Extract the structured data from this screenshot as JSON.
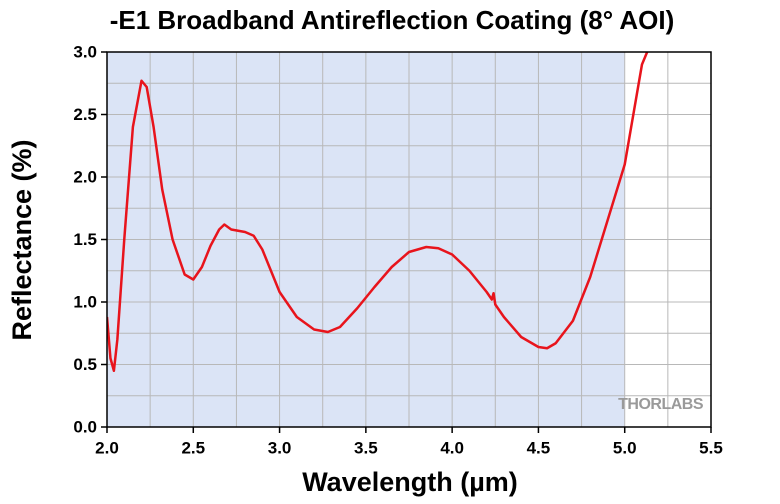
{
  "chart_data": {
    "type": "line",
    "title": "-E1 Broadband Antireflection Coating (8° AOI)",
    "xlabel": "Wavelength (µm)",
    "ylabel": "Reflectance (%)",
    "watermark": "THORLABS",
    "x": [
      2.0,
      2.02,
      2.04,
      2.06,
      2.1,
      2.15,
      2.2,
      2.23,
      2.27,
      2.32,
      2.38,
      2.45,
      2.5,
      2.55,
      2.6,
      2.65,
      2.68,
      2.72,
      2.8,
      2.85,
      2.9,
      2.95,
      3.0,
      3.1,
      3.2,
      3.28,
      3.35,
      3.45,
      3.55,
      3.65,
      3.75,
      3.85,
      3.92,
      4.0,
      4.1,
      4.2,
      4.23,
      4.24,
      4.25,
      4.3,
      4.4,
      4.5,
      4.55,
      4.6,
      4.7,
      4.8,
      4.9,
      5.0,
      5.1,
      5.13
    ],
    "series": [
      {
        "name": "Reflectance",
        "color": "#e8141c",
        "values": [
          0.88,
          0.55,
          0.45,
          0.7,
          1.5,
          2.4,
          2.77,
          2.72,
          2.4,
          1.9,
          1.5,
          1.22,
          1.18,
          1.28,
          1.45,
          1.58,
          1.62,
          1.58,
          1.56,
          1.53,
          1.42,
          1.25,
          1.08,
          0.88,
          0.78,
          0.76,
          0.8,
          0.95,
          1.12,
          1.28,
          1.4,
          1.44,
          1.43,
          1.38,
          1.25,
          1.08,
          1.02,
          1.07,
          0.98,
          0.88,
          0.72,
          0.64,
          0.63,
          0.67,
          0.85,
          1.2,
          1.65,
          2.1,
          2.9,
          3.0
        ]
      }
    ],
    "xlim": [
      2.0,
      5.5
    ],
    "ylim": [
      0.0,
      3.0
    ],
    "xticks": [
      {
        "value": 2.0,
        "label": "2.0"
      },
      {
        "value": 2.5,
        "label": "2.5"
      },
      {
        "value": 3.0,
        "label": "3.0"
      },
      {
        "value": 3.5,
        "label": "3.5"
      },
      {
        "value": 4.0,
        "label": "4.0"
      },
      {
        "value": 4.5,
        "label": "4.5"
      },
      {
        "value": 5.0,
        "label": "5.0"
      },
      {
        "value": 5.5,
        "label": "5.5"
      }
    ],
    "yticks": [
      {
        "value": 0.0,
        "label": "0.0"
      },
      {
        "value": 0.5,
        "label": "0.5"
      },
      {
        "value": 1.0,
        "label": "1.0"
      },
      {
        "value": 1.5,
        "label": "1.5"
      },
      {
        "value": 2.0,
        "label": "2.0"
      },
      {
        "value": 2.5,
        "label": "2.5"
      },
      {
        "value": 3.0,
        "label": "3.0"
      }
    ],
    "xticks_minor": [
      2.25,
      2.75,
      3.25,
      3.75,
      4.25,
      4.75,
      5.25
    ],
    "yticks_minor": [
      0.25,
      0.75,
      1.25,
      1.75,
      2.25,
      2.75
    ],
    "highlight_xrange": [
      2.0,
      5.0
    ],
    "highlight_color": "#dbe4f6",
    "grid": true
  }
}
